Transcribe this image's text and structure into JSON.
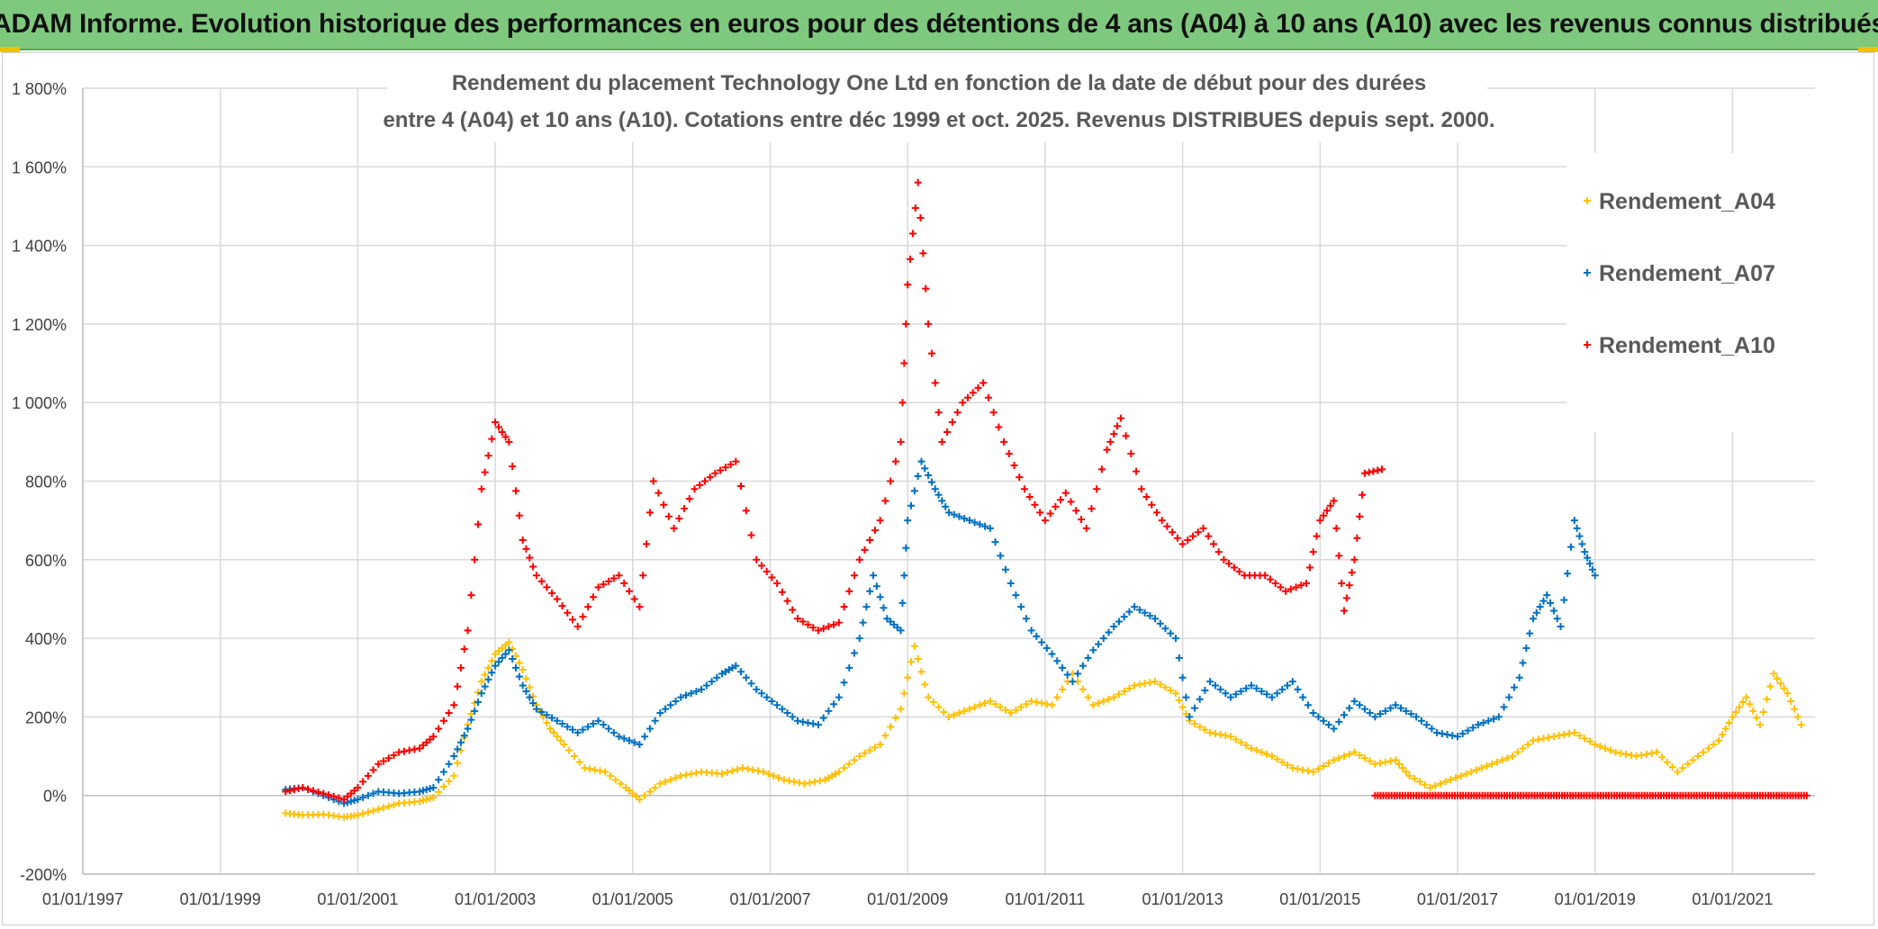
{
  "banner": {
    "title": "ADAM Informe. Evolution historique des performances en euros pour des détentions de 4 ans (A04) à 10 ans (A10) avec les revenus connus distribués"
  },
  "colors": {
    "banner_bg": "#7fc97f",
    "A04": "#ffc000",
    "A07": "#0070c0",
    "A10": "#ff0000",
    "grid": "#d9d9d9"
  },
  "chart_data": {
    "type": "scatter",
    "title_line1": "Rendement du placement Technology One Ltd en fonction de la date de début pour des durées",
    "title_line2": "entre 4 (A04) et 10 ans (A10). Cotations entre déc 1999 et oct. 2025. Revenus DISTRIBUES depuis sept. 2000.",
    "xlabel": "",
    "ylabel": "",
    "x_range_years": [
      1997.0,
      2022.2
    ],
    "x_ticks": [
      {
        "year": 1997,
        "label": "01/01/1997"
      },
      {
        "year": 1999,
        "label": "01/01/1999"
      },
      {
        "year": 2001,
        "label": "01/01/2001"
      },
      {
        "year": 2003,
        "label": "01/01/2003"
      },
      {
        "year": 2005,
        "label": "01/01/2005"
      },
      {
        "year": 2007,
        "label": "01/01/2007"
      },
      {
        "year": 2009,
        "label": "01/01/2009"
      },
      {
        "year": 2011,
        "label": "01/01/2011"
      },
      {
        "year": 2013,
        "label": "01/01/2013"
      },
      {
        "year": 2015,
        "label": "01/01/2015"
      },
      {
        "year": 2017,
        "label": "01/01/2017"
      },
      {
        "year": 2019,
        "label": "01/01/2019"
      },
      {
        "year": 2021,
        "label": "01/01/2021"
      }
    ],
    "ylim": [
      -200,
      1800
    ],
    "y_ticks": [
      {
        "value": -200,
        "label": "-200%"
      },
      {
        "value": 0,
        "label": "0%"
      },
      {
        "value": 200,
        "label": "200%"
      },
      {
        "value": 400,
        "label": "400%"
      },
      {
        "value": 600,
        "label": "600%"
      },
      {
        "value": 800,
        "label": "800%"
      },
      {
        "value": 1000,
        "label": "1 000%"
      },
      {
        "value": 1200,
        "label": "1 200%"
      },
      {
        "value": 1400,
        "label": "1 400%"
      },
      {
        "value": 1600,
        "label": "1 600%"
      },
      {
        "value": 1800,
        "label": "1 800%"
      }
    ],
    "grid": true,
    "legend_position": "top-right",
    "series": [
      {
        "name": "Rendement_A04",
        "color": "#ffc000",
        "points": [
          [
            1999.95,
            -45
          ],
          [
            2000.2,
            -50
          ],
          [
            2000.5,
            -48
          ],
          [
            2000.8,
            -55
          ],
          [
            2001.0,
            -50
          ],
          [
            2001.3,
            -35
          ],
          [
            2001.6,
            -20
          ],
          [
            2001.9,
            -15
          ],
          [
            2002.1,
            -5
          ],
          [
            2002.4,
            50
          ],
          [
            2002.6,
            180
          ],
          [
            2002.8,
            290
          ],
          [
            2003.0,
            360
          ],
          [
            2003.2,
            390
          ],
          [
            2003.4,
            320
          ],
          [
            2003.6,
            230
          ],
          [
            2003.8,
            170
          ],
          [
            2004.0,
            130
          ],
          [
            2004.3,
            70
          ],
          [
            2004.6,
            60
          ],
          [
            2004.9,
            20
          ],
          [
            2005.1,
            -10
          ],
          [
            2005.4,
            30
          ],
          [
            2005.7,
            50
          ],
          [
            2006.0,
            60
          ],
          [
            2006.3,
            55
          ],
          [
            2006.6,
            70
          ],
          [
            2006.9,
            60
          ],
          [
            2007.2,
            40
          ],
          [
            2007.5,
            30
          ],
          [
            2007.8,
            40
          ],
          [
            2008.0,
            60
          ],
          [
            2008.3,
            100
          ],
          [
            2008.6,
            130
          ],
          [
            2008.9,
            220
          ],
          [
            2009.1,
            380
          ],
          [
            2009.3,
            250
          ],
          [
            2009.6,
            200
          ],
          [
            2009.9,
            220
          ],
          [
            2010.2,
            240
          ],
          [
            2010.5,
            210
          ],
          [
            2010.8,
            240
          ],
          [
            2011.1,
            230
          ],
          [
            2011.4,
            310
          ],
          [
            2011.7,
            230
          ],
          [
            2012.0,
            250
          ],
          [
            2012.3,
            280
          ],
          [
            2012.6,
            290
          ],
          [
            2012.9,
            260
          ],
          [
            2013.1,
            190
          ],
          [
            2013.4,
            160
          ],
          [
            2013.7,
            150
          ],
          [
            2014.0,
            120
          ],
          [
            2014.3,
            100
          ],
          [
            2014.6,
            70
          ],
          [
            2014.9,
            60
          ],
          [
            2015.2,
            90
          ],
          [
            2015.5,
            110
          ],
          [
            2015.8,
            80
          ],
          [
            2016.1,
            90
          ],
          [
            2016.3,
            50
          ],
          [
            2016.6,
            20
          ],
          [
            2016.9,
            40
          ],
          [
            2017.2,
            60
          ],
          [
            2017.5,
            80
          ],
          [
            2017.8,
            100
          ],
          [
            2018.1,
            140
          ],
          [
            2018.4,
            150
          ],
          [
            2018.7,
            160
          ],
          [
            2019.0,
            130
          ],
          [
            2019.3,
            110
          ],
          [
            2019.6,
            100
          ],
          [
            2019.9,
            110
          ],
          [
            2020.2,
            60
          ],
          [
            2020.5,
            100
          ],
          [
            2020.8,
            140
          ],
          [
            2021.0,
            200
          ],
          [
            2021.2,
            250
          ],
          [
            2021.4,
            180
          ],
          [
            2021.6,
            310
          ],
          [
            2021.8,
            260
          ],
          [
            2022.0,
            180
          ]
        ]
      },
      {
        "name": "Rendement_A07",
        "color": "#0070c0",
        "points": [
          [
            1999.95,
            15
          ],
          [
            2000.2,
            20
          ],
          [
            2000.5,
            0
          ],
          [
            2000.8,
            -20
          ],
          [
            2001.0,
            -10
          ],
          [
            2001.3,
            10
          ],
          [
            2001.6,
            5
          ],
          [
            2001.9,
            10
          ],
          [
            2002.1,
            20
          ],
          [
            2002.4,
            100
          ],
          [
            2002.6,
            170
          ],
          [
            2002.8,
            260
          ],
          [
            2003.0,
            330
          ],
          [
            2003.2,
            370
          ],
          [
            2003.4,
            280
          ],
          [
            2003.6,
            220
          ],
          [
            2003.9,
            190
          ],
          [
            2004.2,
            160
          ],
          [
            2004.5,
            190
          ],
          [
            2004.8,
            150
          ],
          [
            2005.1,
            130
          ],
          [
            2005.4,
            210
          ],
          [
            2005.7,
            250
          ],
          [
            2006.0,
            270
          ],
          [
            2006.3,
            310
          ],
          [
            2006.5,
            330
          ],
          [
            2006.8,
            270
          ],
          [
            2007.1,
            230
          ],
          [
            2007.4,
            190
          ],
          [
            2007.7,
            180
          ],
          [
            2008.0,
            250
          ],
          [
            2008.3,
            400
          ],
          [
            2008.5,
            560
          ],
          [
            2008.7,
            450
          ],
          [
            2008.9,
            420
          ],
          [
            2009.0,
            700
          ],
          [
            2009.2,
            850
          ],
          [
            2009.4,
            780
          ],
          [
            2009.6,
            720
          ],
          [
            2009.9,
            700
          ],
          [
            2010.2,
            680
          ],
          [
            2010.5,
            540
          ],
          [
            2010.8,
            420
          ],
          [
            2011.1,
            360
          ],
          [
            2011.4,
            290
          ],
          [
            2011.7,
            370
          ],
          [
            2012.0,
            430
          ],
          [
            2012.3,
            480
          ],
          [
            2012.6,
            450
          ],
          [
            2012.9,
            400
          ],
          [
            2013.1,
            200
          ],
          [
            2013.4,
            290
          ],
          [
            2013.7,
            250
          ],
          [
            2014.0,
            280
          ],
          [
            2014.3,
            250
          ],
          [
            2014.6,
            290
          ],
          [
            2014.9,
            210
          ],
          [
            2015.2,
            170
          ],
          [
            2015.5,
            240
          ],
          [
            2015.8,
            200
          ],
          [
            2016.1,
            230
          ],
          [
            2016.4,
            200
          ],
          [
            2016.7,
            160
          ],
          [
            2017.0,
            150
          ],
          [
            2017.3,
            180
          ],
          [
            2017.6,
            200
          ],
          [
            2017.9,
            300
          ],
          [
            2018.1,
            450
          ],
          [
            2018.3,
            510
          ],
          [
            2018.5,
            430
          ],
          [
            2018.7,
            700
          ],
          [
            2018.85,
            620
          ],
          [
            2019.0,
            560
          ]
        ]
      },
      {
        "name": "Rendement_A10",
        "color": "#ff0000",
        "points": [
          [
            1999.95,
            10
          ],
          [
            2000.2,
            20
          ],
          [
            2000.5,
            5
          ],
          [
            2000.8,
            -10
          ],
          [
            2001.0,
            20
          ],
          [
            2001.3,
            80
          ],
          [
            2001.6,
            110
          ],
          [
            2001.9,
            120
          ],
          [
            2002.1,
            150
          ],
          [
            2002.4,
            230
          ],
          [
            2002.6,
            420
          ],
          [
            2002.8,
            780
          ],
          [
            2003.0,
            950
          ],
          [
            2003.2,
            900
          ],
          [
            2003.4,
            650
          ],
          [
            2003.6,
            560
          ],
          [
            2003.9,
            500
          ],
          [
            2004.2,
            430
          ],
          [
            2004.5,
            530
          ],
          [
            2004.8,
            560
          ],
          [
            2005.1,
            480
          ],
          [
            2005.3,
            800
          ],
          [
            2005.6,
            680
          ],
          [
            2005.9,
            780
          ],
          [
            2006.2,
            820
          ],
          [
            2006.5,
            850
          ],
          [
            2006.8,
            600
          ],
          [
            2007.1,
            540
          ],
          [
            2007.4,
            450
          ],
          [
            2007.7,
            420
          ],
          [
            2008.0,
            440
          ],
          [
            2008.3,
            600
          ],
          [
            2008.6,
            700
          ],
          [
            2008.9,
            900
          ],
          [
            2009.0,
            1300
          ],
          [
            2009.15,
            1560
          ],
          [
            2009.3,
            1200
          ],
          [
            2009.5,
            900
          ],
          [
            2009.8,
            1000
          ],
          [
            2010.1,
            1050
          ],
          [
            2010.4,
            900
          ],
          [
            2010.7,
            780
          ],
          [
            2011.0,
            700
          ],
          [
            2011.3,
            770
          ],
          [
            2011.6,
            680
          ],
          [
            2011.9,
            880
          ],
          [
            2012.1,
            960
          ],
          [
            2012.4,
            780
          ],
          [
            2012.7,
            700
          ],
          [
            2013.0,
            640
          ],
          [
            2013.3,
            680
          ],
          [
            2013.6,
            600
          ],
          [
            2013.9,
            560
          ],
          [
            2014.2,
            560
          ],
          [
            2014.5,
            520
          ],
          [
            2014.8,
            540
          ],
          [
            2015.0,
            700
          ],
          [
            2015.2,
            750
          ],
          [
            2015.35,
            470
          ],
          [
            2015.5,
            600
          ],
          [
            2015.65,
            820
          ],
          [
            2015.9,
            830
          ]
        ]
      }
    ],
    "zero_baseline_series": {
      "name": "Rendement_A10",
      "x_from": 2015.8,
      "x_to": 2022.1,
      "value": 0
    }
  }
}
